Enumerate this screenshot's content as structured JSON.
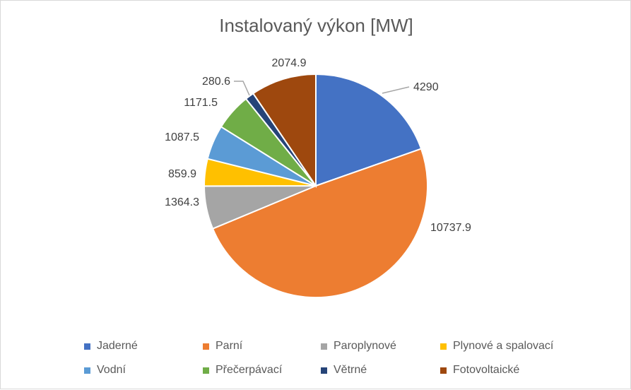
{
  "chart_data": {
    "type": "pie",
    "title": "Instalovaný výkon [MW]",
    "categories": [
      "Jaderné",
      "Parní",
      "Paroplynové",
      "Plynové a spalovací",
      "Vodní",
      "Přečerpávací",
      "Větrné",
      "Fotovoltaické"
    ],
    "values": [
      4290,
      10737.9,
      1364.3,
      859.9,
      1087.5,
      1171.5,
      280.6,
      2074.9
    ],
    "value_labels": [
      "4290",
      "10737.9",
      "1364.3",
      "859.9",
      "1087.5",
      "1171.5",
      "280.6",
      "2074.9"
    ],
    "colors": [
      "#4472C4",
      "#ED7D31",
      "#A5A5A5",
      "#FFC000",
      "#5B9BD5",
      "#70AD47",
      "#264478",
      "#9E480E"
    ],
    "legend_position": "bottom"
  }
}
